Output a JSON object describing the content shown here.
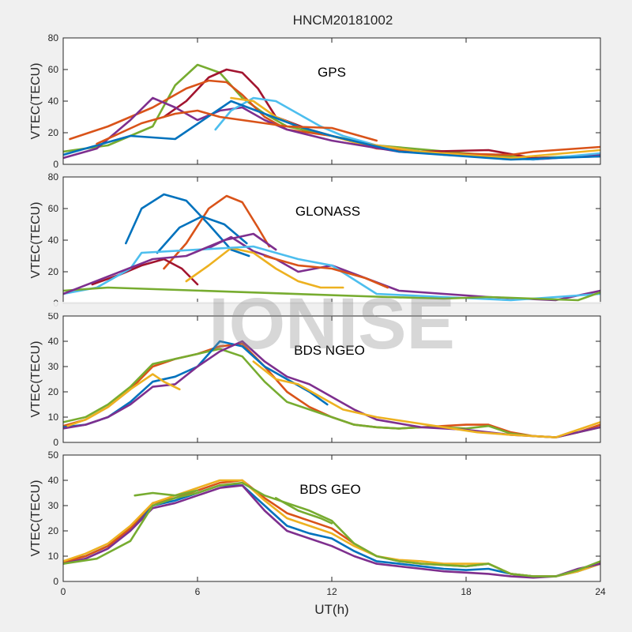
{
  "figure": {
    "title": "HNCM20181002",
    "xlabel": "UT(h)",
    "watermark": "IONISE"
  },
  "colors": {
    "background": "#f0f0f0",
    "axes_bg": "#ffffff",
    "palette": [
      "#0072BD",
      "#D95319",
      "#EDB120",
      "#7E2F8E",
      "#77AC30",
      "#4DBEEE",
      "#A2142F"
    ]
  },
  "chart_data": [
    {
      "type": "line",
      "label": "GPS",
      "ylabel": "VTEC(TECU)",
      "xlim": [
        0,
        24
      ],
      "ylim": [
        0,
        80
      ],
      "xticks": [
        0,
        6,
        12,
        18,
        24
      ],
      "yticks": [
        0,
        20,
        40,
        60,
        80
      ],
      "xtick_labels_shown": false,
      "series": [
        {
          "color": "#77AC30",
          "x": [
            0,
            2,
            4,
            5,
            6,
            7,
            8,
            9,
            10,
            12,
            14,
            18,
            21,
            24
          ],
          "y": [
            8,
            12,
            24,
            50,
            63,
            58,
            42,
            32,
            24,
            18,
            12,
            7,
            4,
            6
          ]
        },
        {
          "color": "#A2142F",
          "x": [
            4.5,
            5.5,
            6.5,
            7.3,
            8,
            8.7,
            9.5,
            11,
            13,
            16,
            19,
            21,
            24
          ],
          "y": [
            30,
            40,
            55,
            60,
            58,
            48,
            30,
            22,
            14,
            8,
            9,
            4,
            5
          ]
        },
        {
          "color": "#D95319",
          "x": [
            0.3,
            2,
            4,
            5.5,
            6.5,
            7.3,
            8,
            9,
            10,
            12,
            14,
            17,
            20,
            21,
            24
          ],
          "y": [
            16,
            24,
            36,
            48,
            53,
            52,
            44,
            30,
            22,
            18,
            10,
            7,
            6,
            8,
            11
          ]
        },
        {
          "color": "#7E2F8E",
          "x": [
            0,
            1.5,
            3,
            4,
            5,
            6,
            7,
            8,
            9,
            10,
            12,
            15,
            18,
            21,
            24
          ],
          "y": [
            4,
            10,
            28,
            42,
            36,
            28,
            34,
            36,
            28,
            22,
            15,
            8,
            6,
            3,
            6
          ]
        },
        {
          "color": "#4DBEEE",
          "x": [
            6.8,
            7.5,
            8.5,
            9.5,
            10.5,
            11.5,
            12.5,
            14,
            17,
            21,
            24
          ],
          "y": [
            22,
            34,
            42,
            40,
            32,
            24,
            18,
            12,
            6,
            3,
            7
          ]
        },
        {
          "color": "#EDB120",
          "x": [
            7.5,
            8.5,
            9.5,
            10.5,
            11.5,
            13,
            16,
            20,
            24
          ],
          "y": [
            42,
            40,
            30,
            24,
            20,
            14,
            8,
            4,
            9
          ]
        },
        {
          "color": "#0072BD",
          "x": [
            0,
            1,
            2,
            3,
            5,
            7.5,
            9,
            10.5,
            12,
            15,
            18,
            20,
            24
          ],
          "y": [
            6,
            10,
            14,
            18,
            16,
            40,
            32,
            24,
            18,
            8,
            5,
            3,
            5
          ]
        },
        {
          "color": "#D95319",
          "x": [
            1.5,
            3.5,
            5,
            6,
            7,
            8,
            10,
            12,
            14
          ],
          "y": [
            13,
            26,
            32,
            34,
            30,
            28,
            24,
            23,
            15
          ]
        }
      ]
    },
    {
      "type": "line",
      "label": "GLONASS",
      "ylabel": "VTEC(TECU)",
      "xlim": [
        0,
        24
      ],
      "ylim": [
        0,
        80
      ],
      "xticks": [
        0,
        6,
        12,
        18,
        24
      ],
      "yticks": [
        0,
        20,
        40,
        60,
        80
      ],
      "xtick_labels_shown": false,
      "series": [
        {
          "color": "#0072BD",
          "x": [
            2.8,
            3.5,
            4.5,
            5.5,
            6.5,
            7.5,
            8.3
          ],
          "y": [
            38,
            60,
            69,
            65,
            50,
            34,
            30
          ]
        },
        {
          "color": "#D95319",
          "x": [
            4.5,
            5.5,
            6.5,
            7.3,
            8,
            8.7,
            9.2
          ],
          "y": [
            22,
            38,
            60,
            68,
            64,
            48,
            36
          ]
        },
        {
          "color": "#0072BD",
          "x": [
            4.2,
            5.2,
            6.2,
            7.2,
            8.2
          ],
          "y": [
            32,
            48,
            55,
            50,
            38
          ]
        },
        {
          "color": "#A2142F",
          "x": [
            1.3,
            2.5,
            3.5,
            4.5,
            5.3,
            6
          ],
          "y": [
            12,
            18,
            24,
            28,
            22,
            12
          ]
        },
        {
          "color": "#7E2F8E",
          "x": [
            6.5,
            7.5,
            8.5,
            9.5,
            10.5,
            12,
            15,
            19,
            22,
            24
          ],
          "y": [
            35,
            42,
            33,
            28,
            20,
            24,
            8,
            4,
            2,
            8
          ]
        },
        {
          "color": "#EDB120",
          "x": [
            5.5,
            6.5,
            7.5,
            8.5,
            9.5,
            10.5,
            11.5,
            12.5
          ],
          "y": [
            14,
            24,
            35,
            32,
            22,
            14,
            10,
            10
          ]
        },
        {
          "color": "#4DBEEE",
          "x": [
            0,
            1.5,
            3,
            3.5,
            8.5,
            10.5,
            12,
            14,
            17,
            20,
            24
          ],
          "y": [
            6,
            10,
            22,
            32,
            36,
            28,
            24,
            6,
            4,
            2,
            6
          ]
        },
        {
          "color": "#D95319",
          "x": [
            9,
            10.5,
            12,
            13.5,
            14.5
          ],
          "y": [
            30,
            24,
            22,
            16,
            10
          ]
        },
        {
          "color": "#77AC30",
          "x": [
            0,
            2,
            14.5,
            17,
            19,
            21,
            23,
            24
          ],
          "y": [
            8,
            10,
            4,
            3,
            4,
            3,
            2,
            7
          ]
        },
        {
          "color": "#7E2F8E",
          "x": [
            0,
            4,
            5.5,
            7.2,
            8.5,
            9.5
          ],
          "y": [
            6,
            28,
            30,
            40,
            44,
            34
          ]
        }
      ]
    },
    {
      "type": "line",
      "label": "BDS NGEO",
      "ylabel": "VTEC(TECU)",
      "xlim": [
        0,
        24
      ],
      "ylim": [
        0,
        50
      ],
      "xticks": [
        0,
        6,
        12,
        18,
        24
      ],
      "yticks": [
        0,
        10,
        20,
        30,
        40,
        50
      ],
      "xtick_labels_shown": false,
      "series": [
        {
          "color": "#D95319",
          "x": [
            0,
            1,
            2,
            3,
            4,
            5,
            6,
            7,
            8,
            9,
            10,
            11,
            12,
            13,
            14,
            15,
            16,
            17,
            18,
            19,
            20,
            21,
            22,
            23,
            24
          ],
          "y": [
            6.5,
            9,
            14,
            21,
            30,
            33,
            35,
            38,
            39,
            30,
            20,
            14,
            10,
            7,
            6,
            5.5,
            6,
            6.5,
            7,
            7,
            4,
            2.5,
            2,
            4,
            7
          ]
        },
        {
          "color": "#77AC30",
          "x": [
            0,
            1,
            2,
            3,
            4,
            5,
            6,
            7,
            8,
            9,
            10,
            11,
            12,
            13,
            14,
            15,
            16,
            17,
            18,
            19,
            20,
            21,
            22,
            23,
            24
          ],
          "y": [
            8,
            10,
            15,
            22,
            31,
            33,
            35,
            37,
            34,
            24,
            16,
            13,
            10,
            7,
            6,
            5.5,
            6,
            6,
            5.5,
            6.5,
            3.5,
            2.5,
            2,
            4,
            6
          ]
        },
        {
          "color": "#0072BD",
          "x": [
            0,
            1,
            2,
            3,
            4,
            5,
            6,
            7,
            8,
            9,
            10,
            11,
            11.8
          ],
          "y": [
            6,
            7,
            10,
            16,
            24,
            26,
            30,
            40,
            38,
            30,
            25,
            20,
            15
          ]
        },
        {
          "color": "#7E2F8E",
          "x": [
            0,
            1,
            2,
            3,
            4,
            5,
            6,
            7,
            8,
            9,
            10,
            11,
            12,
            13,
            14,
            16,
            18,
            20,
            22,
            24
          ],
          "y": [
            5.5,
            7,
            10,
            15,
            22,
            23,
            30,
            36,
            40,
            32,
            26,
            23,
            18,
            13,
            9,
            6,
            5,
            3,
            2,
            6
          ]
        },
        {
          "color": "#EDB120",
          "x": [
            0.2,
            1,
            2,
            3,
            4,
            4.5,
            5.2
          ],
          "y": [
            6.5,
            9,
            14,
            21,
            27,
            24,
            21
          ]
        },
        {
          "color": "#EDB120",
          "x": [
            8.5,
            9.5,
            10.5,
            11.5,
            12.5,
            14,
            15.5,
            17,
            18.5,
            20,
            22,
            24
          ],
          "y": [
            32,
            25,
            23,
            18,
            13,
            10,
            8,
            6,
            4,
            3,
            2,
            8
          ]
        }
      ]
    },
    {
      "type": "line",
      "label": "BDS GEO",
      "ylabel": "VTEC(TECU)",
      "xlabel": "UT(h)",
      "xlim": [
        0,
        24
      ],
      "ylim": [
        0,
        50
      ],
      "xticks": [
        0,
        6,
        12,
        18,
        24
      ],
      "yticks": [
        0,
        10,
        20,
        30,
        40,
        50
      ],
      "xtick_labels_shown": true,
      "series": [
        {
          "color": "#0072BD",
          "x": [
            0,
            1,
            2,
            3,
            4,
            5,
            6,
            7,
            8,
            9,
            10,
            11,
            12,
            13,
            14,
            15,
            16,
            17,
            18,
            19,
            20,
            21,
            22,
            23,
            24
          ],
          "y": [
            8,
            10,
            14,
            21,
            30,
            32,
            35,
            38,
            38,
            30,
            22,
            19,
            17,
            12,
            8,
            7,
            6,
            5,
            4.5,
            5,
            3,
            2,
            2,
            4,
            7
          ]
        },
        {
          "color": "#D95319",
          "x": [
            0,
            1,
            2,
            3,
            4,
            5,
            6,
            7,
            8,
            9,
            10,
            11,
            12,
            13,
            14,
            15,
            16,
            17,
            18,
            19,
            20,
            21,
            22,
            23,
            24
          ],
          "y": [
            7.5,
            10,
            14,
            21,
            31,
            33,
            36,
            39,
            40,
            33,
            27,
            24,
            21,
            15,
            10,
            8,
            7,
            6.5,
            6,
            7,
            3,
            2,
            2,
            4.5,
            7.5
          ]
        },
        {
          "color": "#EDB120",
          "x": [
            0,
            1,
            2,
            3,
            4,
            5,
            6,
            7,
            8,
            9,
            10,
            11,
            12,
            13,
            14,
            15,
            16,
            17,
            18,
            19,
            20,
            21,
            22,
            23,
            24
          ],
          "y": [
            8,
            11,
            15,
            22,
            31,
            34,
            37,
            40,
            40,
            32,
            25,
            22,
            19,
            14,
            10,
            8.5,
            8,
            7,
            7,
            7,
            3,
            2,
            2,
            4,
            7
          ]
        },
        {
          "color": "#7E2F8E",
          "x": [
            0,
            1,
            2,
            3,
            4,
            5,
            6,
            7,
            8,
            9,
            10,
            11,
            12,
            13,
            14,
            15,
            16,
            17,
            18,
            19,
            20,
            21,
            22,
            23,
            24
          ],
          "y": [
            7,
            9,
            13,
            20,
            29,
            31,
            34,
            37,
            38,
            28,
            20,
            17,
            14,
            10,
            7,
            6,
            5,
            4,
            3.5,
            3,
            2,
            1.5,
            2,
            5,
            7
          ]
        },
        {
          "color": "#77AC30",
          "x": [
            0,
            1.5,
            3,
            4,
            5,
            6,
            7,
            8,
            9,
            10,
            11,
            12,
            13,
            14,
            15,
            16,
            17,
            18,
            19,
            20,
            21,
            22,
            23,
            24
          ],
          "y": [
            7,
            9,
            16,
            30,
            33,
            35,
            38,
            39,
            34,
            31,
            28,
            24,
            15,
            10,
            8,
            7,
            6.5,
            6,
            7,
            3,
            2,
            2,
            4.5,
            8
          ]
        },
        {
          "color": "#77AC30",
          "x": [
            3.2,
            4,
            5,
            6
          ],
          "y": [
            34,
            35,
            34,
            36
          ]
        },
        {
          "color": "#77AC30",
          "x": [
            9.5,
            10.5,
            11.5,
            12
          ],
          "y": [
            33,
            28,
            25,
            23
          ]
        }
      ]
    }
  ]
}
